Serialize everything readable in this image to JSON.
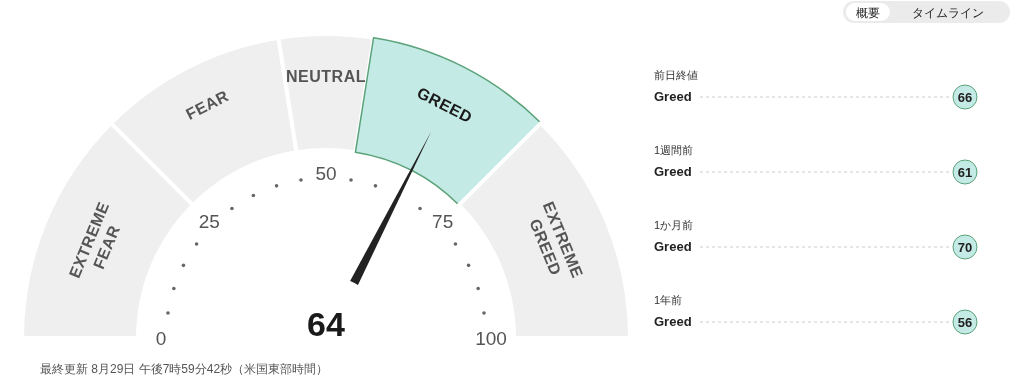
{
  "chart_data": [
    {
      "type": "donut",
      "categories": [
        "EXTREME FEAR",
        "FEAR",
        "NEUTRAL",
        "GREED",
        "EXTREME GREED"
      ],
      "values": [
        25,
        20,
        10,
        20,
        25
      ],
      "colors": [
        "#efefef",
        "#efefef",
        "#efefef",
        "#c4eae5",
        "#efefef"
      ],
      "needle": "GREED",
      "annotations": [
        "0",
        "25",
        "50",
        "75",
        "100",
        "64",
        "最終更新 8月29日 午後7時59分42秒（米国東部時間）"
      ]
    },
    {
      "type": "other",
      "categories": [
        "前日終値",
        "1週間前",
        "1か月前",
        "1年前"
      ],
      "values": [
        66,
        61,
        70,
        56
      ],
      "color": "#c4eae5",
      "data_labels": true,
      "annotations": [
        "概要",
        "タイムライン",
        "Greed",
        "Greed",
        "Greed",
        "Greed"
      ]
    }
  ]
}
